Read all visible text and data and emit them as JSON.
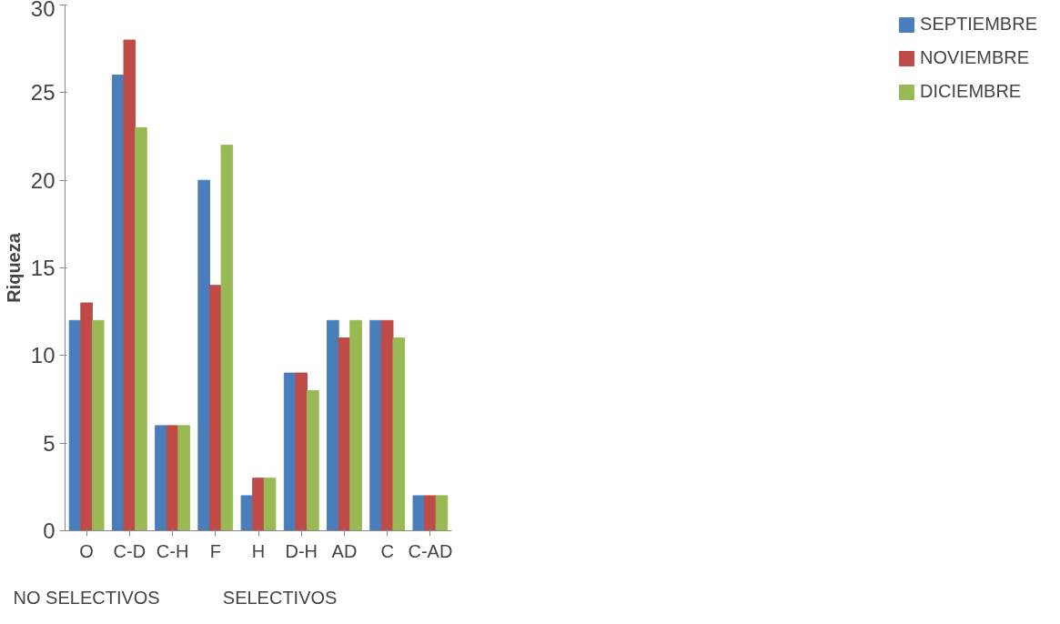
{
  "chart_data": {
    "type": "bar",
    "ylabel": "Riqueza",
    "categories": [
      "O",
      "C-D",
      "C-H",
      "F",
      "H",
      "D-H",
      "AD",
      "C",
      "C-AD"
    ],
    "series": [
      {
        "name": "SEPTIEMBRE",
        "color": "#4a7ebb",
        "values": [
          12,
          26,
          6,
          20,
          2,
          9,
          12,
          12,
          2
        ]
      },
      {
        "name": "NOVIEMBRE",
        "color": "#be4b48",
        "values": [
          13,
          28,
          6,
          14,
          3,
          9,
          11,
          12,
          2
        ]
      },
      {
        "name": "DICIEMBRE",
        "color": "#98b954",
        "values": [
          12,
          23,
          6,
          22,
          3,
          8,
          12,
          11,
          2
        ]
      }
    ],
    "ylim": [
      0,
      30
    ],
    "yticks": [
      0,
      5,
      10,
      15,
      20,
      25,
      30
    ],
    "grid": false,
    "legend": "right",
    "annotations": [
      "NO SELECTIVOS",
      "SELECTIVOS"
    ]
  }
}
